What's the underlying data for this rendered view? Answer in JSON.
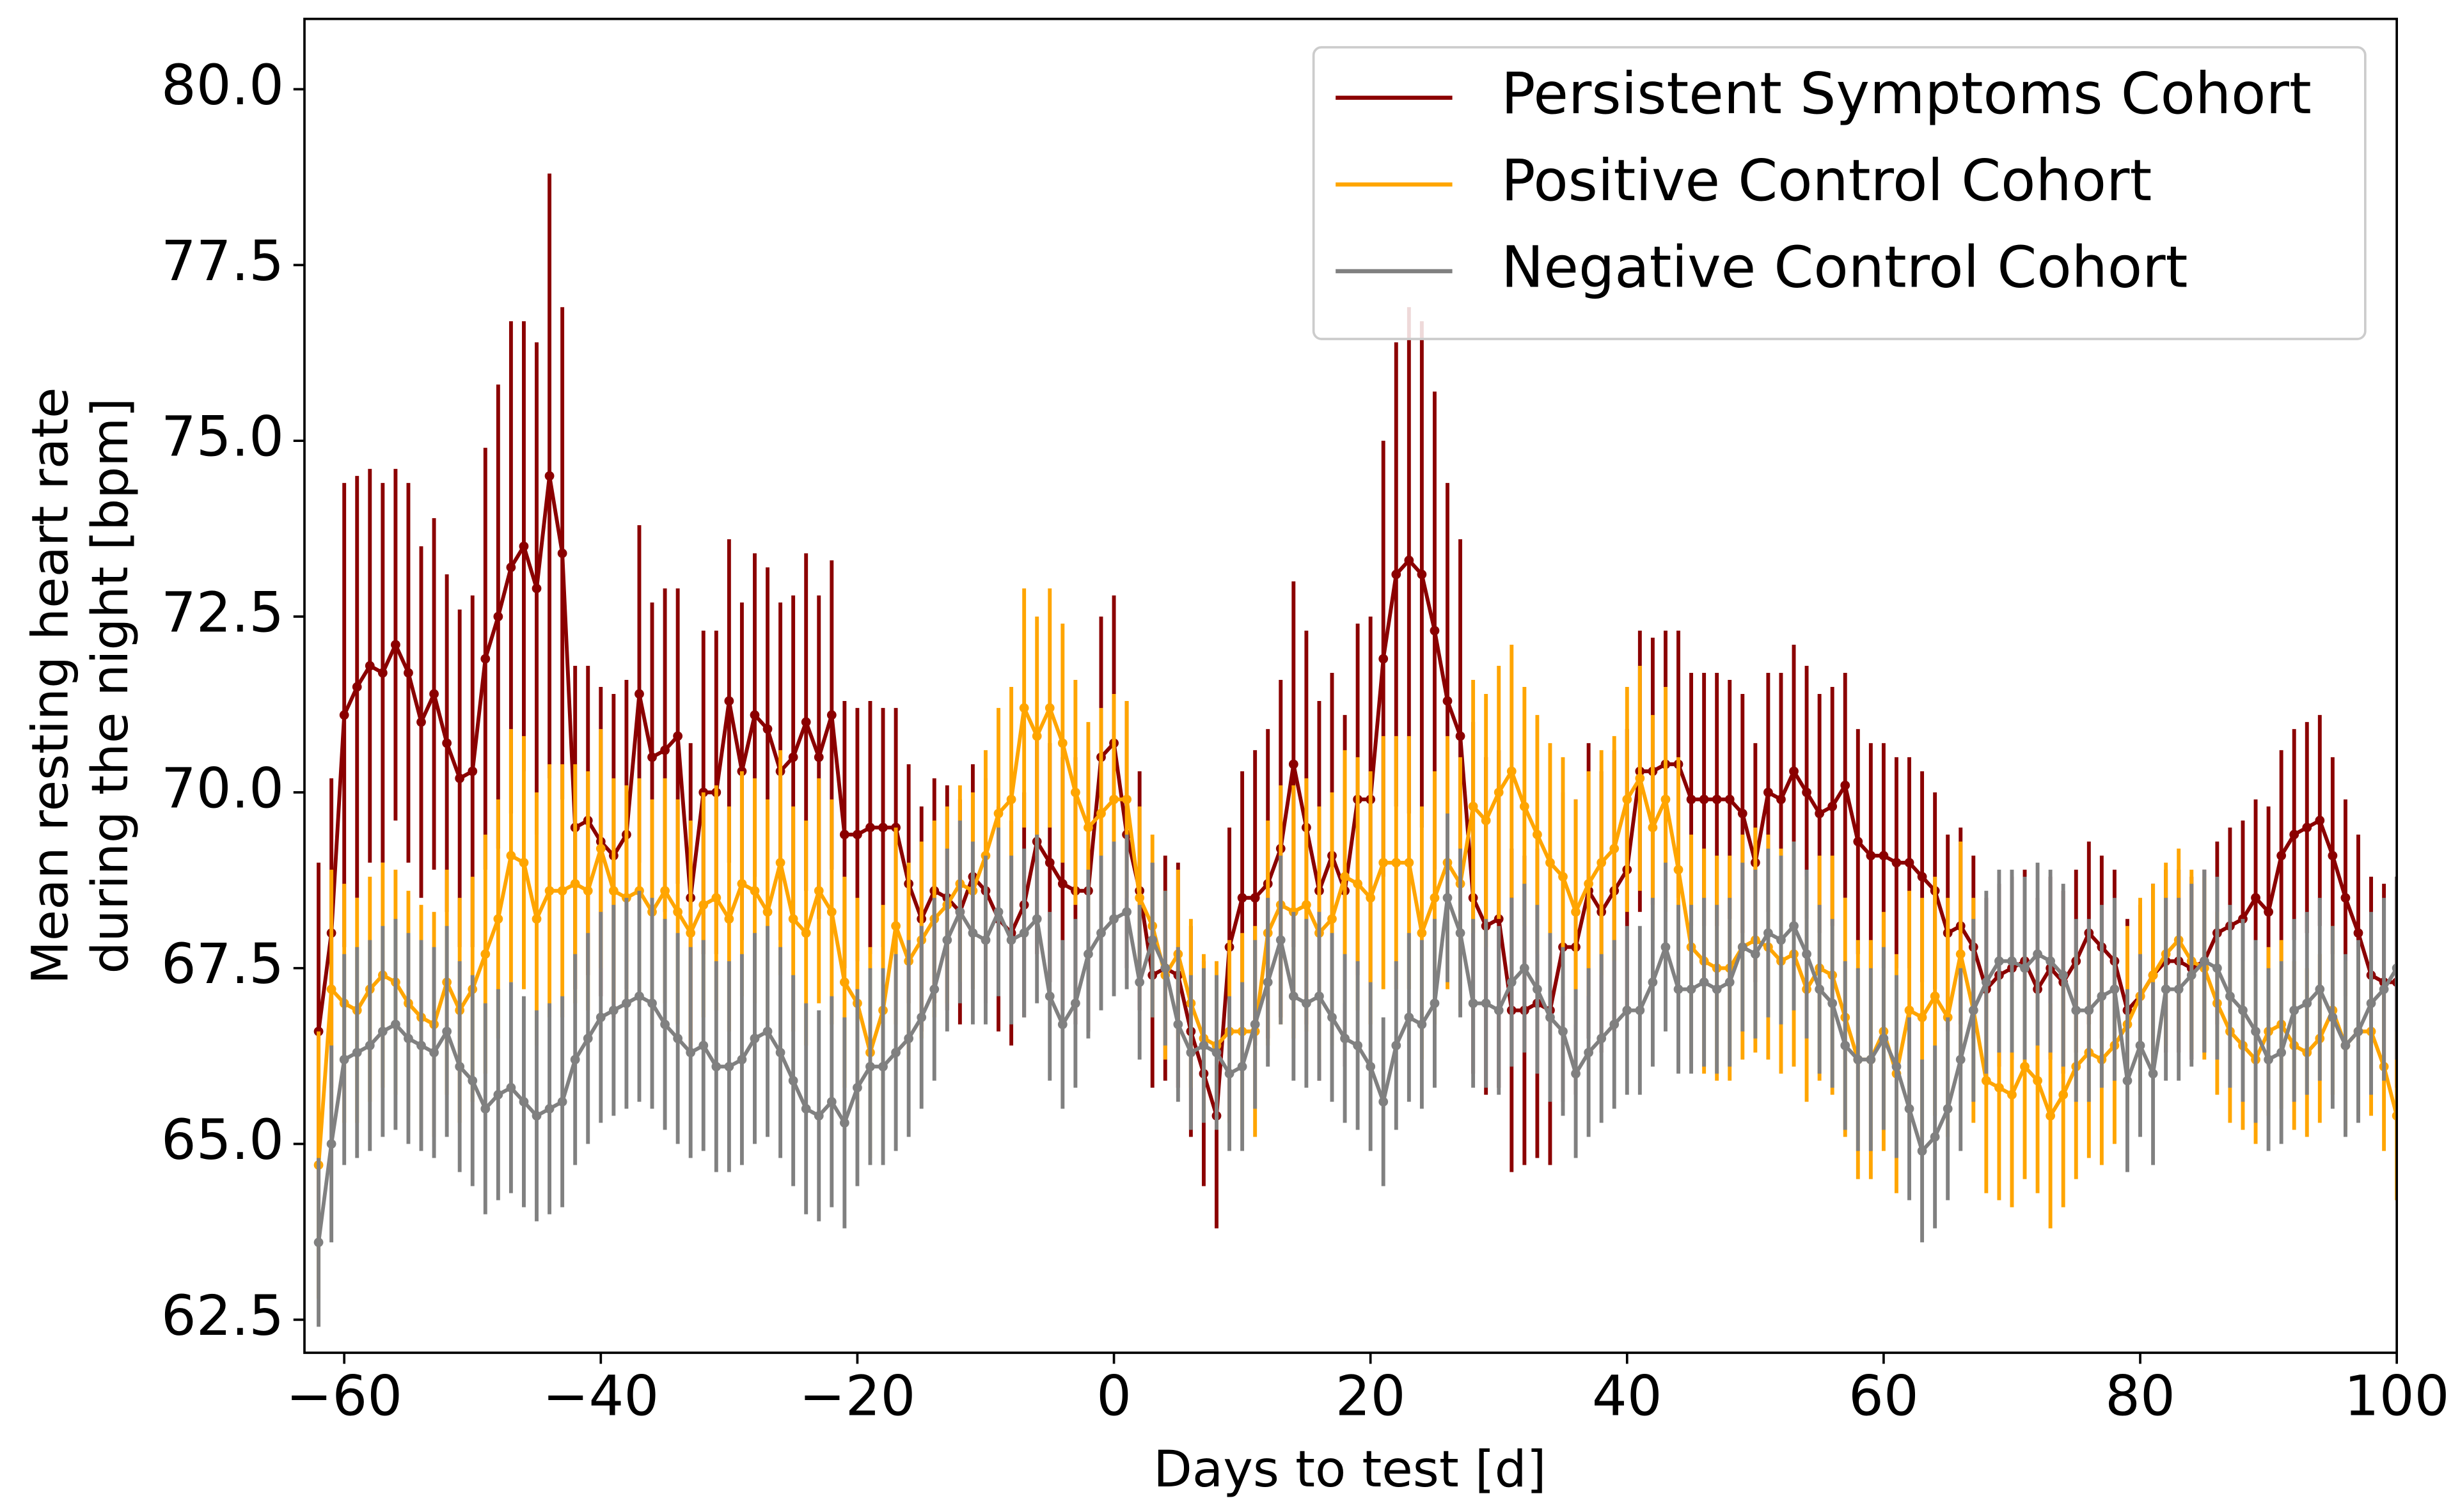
{
  "chart_data": {
    "type": "errorbar-line",
    "xlabel": "Days to test [d]",
    "ylabel": [
      "Mean resting heart rate",
      "during the night [bpm]"
    ],
    "xlim": [
      -63.1,
      100
    ],
    "ylim": [
      62.03,
      81.0
    ],
    "xticks": [
      {
        "value": -60,
        "label": "−60"
      },
      {
        "value": -40,
        "label": "−40"
      },
      {
        "value": -20,
        "label": "−20"
      },
      0,
      20,
      40,
      60,
      80,
      100
    ],
    "yticks": [
      {
        "value": 62.5,
        "label": "62.5"
      },
      {
        "value": 65,
        "label": "65.0"
      },
      67.5,
      {
        "value": 70,
        "label": "70.0"
      },
      72.5,
      {
        "value": 75,
        "label": "75.0"
      },
      77.5,
      {
        "value": 80,
        "label": "80.0"
      }
    ],
    "legend": "upper right",
    "x": [
      -62,
      -61,
      -60,
      -59,
      -58,
      -57,
      -56,
      -55,
      -54,
      -53,
      -52,
      -51,
      -50,
      -49,
      -48,
      -47,
      -46,
      -45,
      -44,
      -43,
      -42,
      -41,
      -40,
      -39,
      -38,
      -37,
      -36,
      -35,
      -34,
      -33,
      -32,
      -31,
      -30,
      -29,
      -28,
      -27,
      -26,
      -25,
      -24,
      -23,
      -22,
      -21,
      -20,
      -19,
      -18,
      -17,
      -16,
      -15,
      -14,
      -13,
      -12,
      -11,
      -10,
      -9,
      -8,
      -7,
      -6,
      -5,
      -4,
      -3,
      -2,
      -1,
      0,
      1,
      2,
      3,
      4,
      5,
      6,
      7,
      8,
      9,
      10,
      11,
      12,
      13,
      14,
      15,
      16,
      17,
      18,
      19,
      20,
      21,
      22,
      23,
      24,
      25,
      26,
      27,
      28,
      29,
      30,
      31,
      32,
      33,
      34,
      35,
      36,
      37,
      38,
      39,
      40,
      41,
      42,
      43,
      44,
      45,
      46,
      47,
      48,
      49,
      50,
      51,
      52,
      53,
      54,
      55,
      56,
      57,
      58,
      59,
      60,
      61,
      62,
      63,
      64,
      65,
      66,
      67,
      68,
      69,
      70,
      71,
      72,
      73,
      74,
      75,
      76,
      77,
      78,
      79,
      80,
      81,
      82,
      83,
      84,
      85,
      86,
      87,
      88,
      89,
      90,
      91,
      92,
      93,
      94,
      95,
      96,
      97,
      98,
      99,
      100
    ],
    "series": [
      {
        "name": "Persistent Symptoms Cohort",
        "color": "#8b0000",
        "values": [
          66.6,
          68.0,
          71.1,
          71.5,
          71.8,
          71.7,
          72.1,
          71.7,
          71.0,
          71.4,
          70.7,
          70.2,
          70.3,
          71.9,
          72.5,
          73.2,
          73.5,
          72.9,
          74.5,
          73.4,
          69.5,
          69.6,
          69.3,
          69.1,
          69.4,
          71.4,
          70.5,
          70.6,
          70.8,
          68.5,
          70.0,
          70.0,
          71.3,
          70.3,
          71.1,
          70.9,
          70.3,
          70.5,
          71.0,
          70.5,
          71.1,
          69.4,
          69.4,
          69.5,
          69.5,
          69.5,
          68.7,
          68.2,
          68.6,
          68.5,
          68.3,
          68.8,
          68.6,
          68.2,
          68.0,
          68.4,
          69.3,
          69.0,
          68.7,
          68.6,
          68.6,
          70.5,
          70.7,
          69.4,
          68.6,
          67.4,
          67.5,
          67.4,
          66.6,
          66.0,
          65.4,
          67.8,
          68.5,
          68.5,
          68.7,
          69.2,
          70.4,
          69.5,
          68.6,
          69.1,
          68.6,
          69.9,
          69.9,
          71.9,
          73.1,
          73.3,
          73.1,
          72.3,
          71.3,
          70.8,
          68.5,
          68.1,
          68.2,
          66.9,
          66.9,
          67.0,
          66.9,
          67.8,
          67.8,
          68.6,
          68.3,
          68.6,
          68.9,
          70.3,
          70.3,
          70.4,
          70.4,
          69.9,
          69.9,
          69.9,
          69.9,
          69.7,
          69.0,
          70.0,
          69.9,
          70.3,
          70.0,
          69.7,
          69.8,
          70.1,
          69.3,
          69.1,
          69.1,
          69.0,
          69.0,
          68.8,
          68.6,
          68.0,
          68.1,
          67.8,
          67.2,
          67.4,
          67.5,
          67.6,
          67.2,
          67.5,
          67.3,
          67.6,
          68.0,
          67.8,
          67.6,
          66.9,
          67.1,
          67.4,
          67.6,
          67.6,
          67.5,
          67.6,
          68.0,
          68.1,
          68.2,
          68.5,
          68.3,
          69.1,
          69.4,
          69.5,
          69.6,
          69.1,
          68.5,
          68.0,
          67.4,
          67.3,
          67.3
        ],
        "errors": [
          2.4,
          2.2,
          3.3,
          3.0,
          2.8,
          2.7,
          2.5,
          2.7,
          2.5,
          2.5,
          2.4,
          2.4,
          2.5,
          3.0,
          3.3,
          3.5,
          3.2,
          3.5,
          4.3,
          3.5,
          2.3,
          2.2,
          2.2,
          2.3,
          2.2,
          2.4,
          2.2,
          2.3,
          2.1,
          2.2,
          2.3,
          2.3,
          2.3,
          2.4,
          2.3,
          2.3,
          2.4,
          2.3,
          2.4,
          2.3,
          2.2,
          1.9,
          1.8,
          1.8,
          1.7,
          1.7,
          1.7,
          1.6,
          1.6,
          1.6,
          1.6,
          1.6,
          1.6,
          1.6,
          1.6,
          1.6,
          1.6,
          1.7,
          1.8,
          1.9,
          2.0,
          2.0,
          2.1,
          1.9,
          1.7,
          1.6,
          1.6,
          1.6,
          1.5,
          1.6,
          1.6,
          1.7,
          1.8,
          2.1,
          2.2,
          2.4,
          2.6,
          2.8,
          2.7,
          2.6,
          2.5,
          2.5,
          2.6,
          3.1,
          3.3,
          3.6,
          3.6,
          3.4,
          3.1,
          2.8,
          2.5,
          2.4,
          2.4,
          2.3,
          2.2,
          2.2,
          2.2,
          2.2,
          2.1,
          2.1,
          2.0,
          2.0,
          2.0,
          2.0,
          1.9,
          1.9,
          1.9,
          1.8,
          1.8,
          1.8,
          1.7,
          1.7,
          1.7,
          1.7,
          1.8,
          1.8,
          1.8,
          1.7,
          1.7,
          1.6,
          1.6,
          1.6,
          1.6,
          1.5,
          1.5,
          1.5,
          1.4,
          1.4,
          1.4,
          1.3,
          1.3,
          1.3,
          1.3,
          1.3,
          1.3,
          1.3,
          1.3,
          1.3,
          1.3,
          1.3,
          1.3,
          1.3,
          1.3,
          1.3,
          1.3,
          1.3,
          1.3,
          1.3,
          1.3,
          1.4,
          1.4,
          1.4,
          1.5,
          1.5,
          1.5,
          1.5,
          1.5,
          1.4,
          1.4,
          1.4,
          1.4,
          1.4,
          1.5
        ]
      },
      {
        "name": "Positive Control Cohort",
        "color": "#ffa500",
        "values": [
          64.7,
          67.2,
          67.0,
          66.9,
          67.2,
          67.4,
          67.3,
          67.0,
          66.8,
          66.7,
          67.3,
          66.9,
          67.2,
          67.7,
          68.2,
          69.1,
          69.0,
          68.2,
          68.6,
          68.6,
          68.7,
          68.6,
          69.2,
          68.6,
          68.5,
          68.6,
          68.3,
          68.6,
          68.3,
          68.0,
          68.4,
          68.5,
          68.2,
          68.7,
          68.6,
          68.3,
          69.0,
          68.2,
          68.0,
          68.6,
          68.3,
          67.3,
          67.0,
          66.3,
          66.9,
          68.1,
          67.6,
          67.9,
          68.2,
          68.4,
          68.7,
          68.6,
          69.1,
          69.7,
          69.9,
          71.2,
          70.8,
          71.2,
          70.7,
          70.0,
          69.5,
          69.7,
          69.9,
          69.9,
          68.5,
          68.1,
          67.4,
          67.7,
          67.0,
          66.5,
          66.4,
          66.6,
          66.6,
          66.6,
          68.0,
          68.4,
          68.3,
          68.4,
          68.0,
          68.2,
          68.8,
          68.7,
          68.5,
          69.0,
          69.0,
          69.0,
          68.0,
          68.5,
          69.0,
          68.7,
          69.8,
          69.6,
          70.0,
          70.3,
          69.8,
          69.4,
          69.0,
          68.8,
          68.3,
          68.7,
          69.0,
          69.2,
          69.9,
          70.2,
          69.5,
          69.9,
          68.9,
          67.8,
          67.6,
          67.5,
          67.5,
          67.8,
          67.9,
          67.8,
          67.6,
          67.7,
          67.2,
          67.5,
          67.4,
          66.8,
          66.2,
          66.2,
          66.6,
          66.0,
          66.9,
          66.8,
          67.1,
          66.8,
          67.7,
          66.9,
          65.9,
          65.8,
          65.7,
          66.1,
          65.9,
          65.4,
          65.7,
          66.1,
          66.3,
          66.2,
          66.4,
          66.7,
          67.1,
          67.4,
          67.7,
          67.9,
          67.6,
          67.5,
          67.0,
          66.6,
          66.4,
          66.2,
          66.6,
          66.7,
          66.4,
          66.3,
          66.5,
          66.9,
          66.4,
          66.6,
          66.6,
          66.1,
          65.4
        ],
        "errors": [
          1.9,
          1.7,
          1.7,
          1.6,
          1.6,
          1.6,
          1.6,
          1.6,
          1.6,
          1.6,
          1.6,
          1.6,
          1.6,
          1.7,
          1.7,
          1.8,
          1.8,
          1.8,
          1.8,
          1.8,
          1.7,
          1.7,
          1.7,
          1.6,
          1.6,
          1.6,
          1.6,
          1.6,
          1.6,
          1.6,
          1.6,
          1.6,
          1.6,
          1.6,
          1.6,
          1.6,
          1.6,
          1.6,
          1.6,
          1.6,
          1.6,
          1.5,
          1.5,
          1.5,
          1.5,
          1.4,
          1.4,
          1.4,
          1.4,
          1.4,
          1.4,
          1.4,
          1.5,
          1.5,
          1.6,
          1.7,
          1.7,
          1.7,
          1.7,
          1.6,
          1.5,
          1.5,
          1.5,
          1.4,
          1.3,
          1.3,
          1.2,
          1.2,
          1.2,
          1.2,
          1.2,
          1.3,
          1.4,
          1.5,
          1.6,
          1.7,
          1.8,
          1.8,
          1.8,
          1.8,
          1.8,
          1.8,
          1.8,
          1.8,
          1.8,
          1.8,
          1.8,
          1.8,
          1.8,
          1.8,
          1.8,
          1.8,
          1.8,
          1.8,
          1.7,
          1.7,
          1.7,
          1.7,
          1.6,
          1.6,
          1.6,
          1.6,
          1.6,
          1.6,
          1.6,
          1.6,
          1.6,
          1.6,
          1.6,
          1.6,
          1.6,
          1.6,
          1.6,
          1.6,
          1.6,
          1.6,
          1.6,
          1.6,
          1.7,
          1.7,
          1.7,
          1.7,
          1.7,
          1.7,
          1.7,
          1.7,
          1.7,
          1.7,
          1.6,
          1.6,
          1.6,
          1.6,
          1.6,
          1.6,
          1.6,
          1.6,
          1.6,
          1.6,
          1.5,
          1.5,
          1.4,
          1.4,
          1.4,
          1.3,
          1.3,
          1.3,
          1.3,
          1.3,
          1.3,
          1.3,
          1.2,
          1.2,
          1.2,
          1.2,
          1.2,
          1.2,
          1.2,
          1.2,
          1.2,
          1.2,
          1.2,
          1.2,
          1.2
        ]
      },
      {
        "name": "Negative Control Cohort",
        "color": "#808080",
        "values": [
          63.6,
          65.0,
          66.2,
          66.3,
          66.4,
          66.6,
          66.7,
          66.5,
          66.4,
          66.3,
          66.6,
          66.1,
          65.9,
          65.5,
          65.7,
          65.8,
          65.6,
          65.4,
          65.5,
          65.6,
          66.2,
          66.5,
          66.8,
          66.9,
          67.0,
          67.1,
          67.0,
          66.7,
          66.5,
          66.3,
          66.4,
          66.1,
          66.1,
          66.2,
          66.5,
          66.6,
          66.3,
          65.9,
          65.5,
          65.4,
          65.6,
          65.3,
          65.8,
          66.1,
          66.1,
          66.3,
          66.5,
          66.8,
          67.2,
          67.9,
          68.3,
          68.0,
          67.9,
          68.3,
          67.9,
          68.0,
          68.2,
          67.1,
          66.7,
          67.0,
          67.7,
          68.0,
          68.2,
          68.3,
          67.3,
          67.9,
          67.5,
          66.7,
          66.3,
          66.4,
          66.3,
          66.0,
          66.1,
          66.7,
          67.3,
          67.9,
          67.1,
          67.0,
          67.1,
          66.8,
          66.5,
          66.4,
          66.1,
          65.6,
          66.4,
          66.8,
          66.7,
          67.0,
          68.5,
          68.0,
          67.0,
          67.0,
          66.9,
          67.3,
          67.5,
          67.2,
          66.8,
          66.6,
          66.0,
          66.3,
          66.5,
          66.7,
          66.9,
          66.9,
          67.3,
          67.8,
          67.2,
          67.2,
          67.3,
          67.2,
          67.3,
          67.8,
          67.7,
          68.0,
          67.9,
          68.1,
          67.7,
          67.2,
          67.0,
          66.4,
          66.2,
          66.2,
          66.5,
          66.1,
          65.5,
          64.9,
          65.1,
          65.5,
          66.2,
          66.9,
          67.3,
          67.6,
          67.6,
          67.5,
          67.7,
          67.6,
          67.4,
          66.9,
          66.9,
          67.1,
          67.2,
          65.9,
          66.4,
          66.0,
          67.2,
          67.2,
          67.4,
          67.6,
          67.5,
          67.1,
          66.9,
          66.6,
          66.2,
          66.3,
          66.9,
          67.0,
          67.2,
          66.8,
          66.4,
          66.6,
          67.0,
          67.2,
          67.5
        ],
        "errors": [
          1.2,
          1.4,
          1.5,
          1.5,
          1.5,
          1.5,
          1.5,
          1.5,
          1.5,
          1.5,
          1.5,
          1.5,
          1.5,
          1.5,
          1.5,
          1.5,
          1.5,
          1.5,
          1.5,
          1.5,
          1.5,
          1.5,
          1.5,
          1.5,
          1.5,
          1.5,
          1.5,
          1.5,
          1.5,
          1.5,
          1.5,
          1.5,
          1.5,
          1.5,
          1.5,
          1.5,
          1.5,
          1.5,
          1.5,
          1.5,
          1.5,
          1.5,
          1.4,
          1.4,
          1.4,
          1.4,
          1.4,
          1.3,
          1.3,
          1.3,
          1.3,
          1.3,
          1.2,
          1.2,
          1.2,
          1.2,
          1.2,
          1.2,
          1.2,
          1.2,
          1.2,
          1.1,
          1.1,
          1.1,
          1.1,
          1.1,
          1.1,
          1.1,
          1.1,
          1.1,
          1.1,
          1.1,
          1.2,
          1.2,
          1.2,
          1.2,
          1.2,
          1.2,
          1.2,
          1.2,
          1.2,
          1.2,
          1.2,
          1.2,
          1.2,
          1.2,
          1.2,
          1.2,
          1.2,
          1.2,
          1.2,
          1.2,
          1.2,
          1.2,
          1.2,
          1.2,
          1.2,
          1.2,
          1.2,
          1.2,
          1.2,
          1.2,
          1.2,
          1.2,
          1.2,
          1.2,
          1.2,
          1.2,
          1.2,
          1.2,
          1.2,
          1.2,
          1.2,
          1.2,
          1.2,
          1.2,
          1.2,
          1.2,
          1.2,
          1.2,
          1.3,
          1.3,
          1.3,
          1.3,
          1.3,
          1.3,
          1.3,
          1.3,
          1.3,
          1.3,
          1.3,
          1.3,
          1.3,
          1.3,
          1.3,
          1.3,
          1.3,
          1.3,
          1.3,
          1.3,
          1.3,
          1.3,
          1.3,
          1.3,
          1.3,
          1.3,
          1.3,
          1.3,
          1.3,
          1.3,
          1.3,
          1.3,
          1.3,
          1.3,
          1.3,
          1.3,
          1.3,
          1.3,
          1.3,
          1.3,
          1.3,
          1.3,
          1.3
        ]
      }
    ]
  }
}
